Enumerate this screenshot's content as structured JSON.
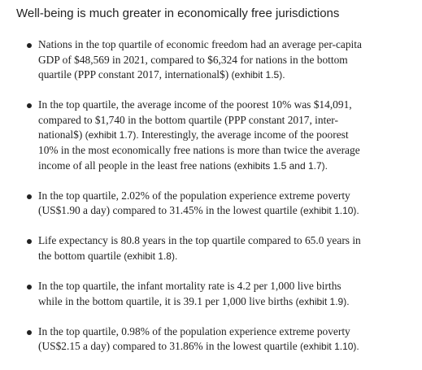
{
  "title": "Well-being is much greater in economically free jurisdictions",
  "bullets": [
    {
      "lines": [
        [
          "Nations in the top quartile of economic freedom had an average per-capita"
        ],
        [
          "GDP of $48,569 in 2021, compared to $6,324 for nations in the bottom"
        ],
        [
          "quartile (PPP constant 2017, international$) ",
          "(exhibit 1.5)."
        ]
      ]
    },
    {
      "lines": [
        [
          "In the top quartile, the average income of the poorest 10% was $14,091,"
        ],
        [
          "compared to $1,740 in the bottom quartile (PPP constant 2017, inter-"
        ],
        [
          "national$) ",
          "(exhibit 1.7).",
          " Interestingly, the average income of the poorest"
        ],
        [
          "10% in the most economically free nations is more than twice the average"
        ],
        [
          "income of all people in the least free nations ",
          "(exhibits 1.5 and 1.7)."
        ]
      ]
    },
    {
      "lines": [
        [
          "In the top quartile, 2.02% of the population experience extreme poverty"
        ],
        [
          "(US$1.90 a day) compared to 31.45% in the lowest quartile ",
          "(exhibit 1.10)."
        ]
      ]
    },
    {
      "lines": [
        [
          "Life expectancy is 80.8 years in the top quartile compared to 65.0 years in"
        ],
        [
          "the bottom quartile ",
          "(exhibit 1.8)."
        ]
      ]
    },
    {
      "lines": [
        [
          "In the top quartile, the infant mortality rate is 4.2 per 1,000 live births"
        ],
        [
          "while in the bottom quartile, it is 39.1 per 1,000 live births ",
          "(exhibit 1.9)."
        ]
      ]
    },
    {
      "lines": [
        [
          "In the top quartile, 0.98% of the population experience extreme poverty"
        ],
        [
          "(US$2.15 a day) compared to 31.86% in the lowest quartile ",
          "(exhibit 1.10)."
        ]
      ]
    }
  ]
}
